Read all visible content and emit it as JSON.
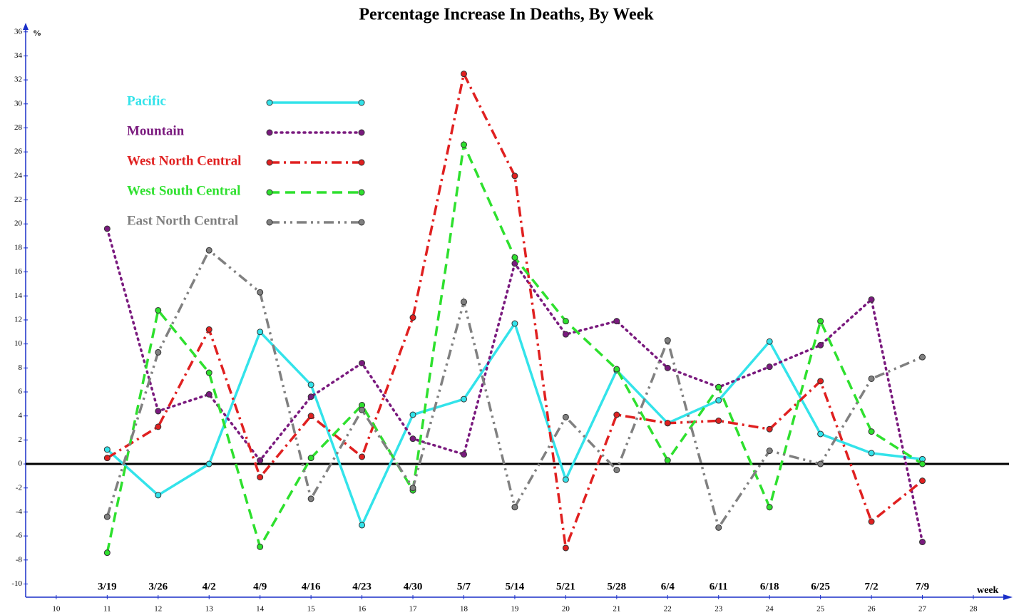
{
  "chart_data": {
    "type": "line",
    "title": "Percentage Increase In Deaths, By Week",
    "ylabel": "%",
    "xlabel": "week",
    "x": [
      11,
      12,
      13,
      14,
      15,
      16,
      17,
      18,
      19,
      20,
      21,
      22,
      23,
      24,
      25,
      26,
      27
    ],
    "date_labels": [
      "3/19",
      "3/26",
      "4/2",
      "4/9",
      "4/16",
      "4/23",
      "4/30",
      "5/7",
      "5/14",
      "5/21",
      "5/28",
      "6/4",
      "6/11",
      "6/18",
      "6/25",
      "7/2",
      "7/9"
    ],
    "xlim": [
      9.4,
      28.7
    ],
    "xticks": [
      10,
      11,
      12,
      13,
      14,
      15,
      16,
      17,
      18,
      19,
      20,
      21,
      22,
      23,
      24,
      25,
      26,
      27,
      28
    ],
    "ylim": [
      -11.1,
      36.4
    ],
    "yticks": [
      -10,
      -8,
      -6,
      -4,
      -2,
      0,
      2,
      4,
      6,
      8,
      10,
      12,
      14,
      16,
      18,
      20,
      22,
      24,
      26,
      28,
      30,
      32,
      34,
      36
    ],
    "legend": "upper left",
    "series": [
      {
        "name": "Pacific",
        "color": "#33e3ea",
        "linestyle": "solid",
        "values": [
          1.2,
          -2.6,
          0,
          11,
          6.6,
          -5.1,
          4.1,
          5.4,
          11.7,
          -1.3,
          7.8,
          3.4,
          5.3,
          10.2,
          2.5,
          0.9,
          0.4
        ]
      },
      {
        "name": "Mountain",
        "color": "#7a1a7e",
        "linestyle": "dotted",
        "values": [
          19.6,
          4.4,
          5.8,
          0.3,
          5.6,
          8.4,
          2.1,
          0.8,
          16.7,
          10.8,
          11.9,
          8.0,
          6.4,
          8.1,
          9.9,
          13.7,
          -6.5
        ]
      },
      {
        "name": "West North Central",
        "color": "#e02020",
        "linestyle": "dashdot",
        "values": [
          0.5,
          3.1,
          11.2,
          -1.1,
          4.0,
          0.6,
          12.2,
          32.5,
          24.0,
          -7.0,
          4.1,
          3.4,
          3.6,
          2.9,
          6.9,
          -4.8,
          -1.4
        ]
      },
      {
        "name": "West South Central",
        "color": "#2ee02e",
        "linestyle": "dashed",
        "values": [
          -7.4,
          12.8,
          7.6,
          -6.9,
          0.5,
          4.9,
          -2.2,
          26.6,
          17.2,
          11.9,
          7.9,
          0.3,
          6.4,
          -3.6,
          11.9,
          2.7,
          0.0
        ]
      },
      {
        "name": "East North Central",
        "color": "#808080",
        "linestyle": "dashdotdot",
        "values": [
          -4.4,
          9.3,
          17.8,
          14.3,
          -2.9,
          4.5,
          -2.0,
          13.5,
          -3.6,
          3.9,
          -0.5,
          10.3,
          -5.3,
          1.1,
          0.0,
          7.1,
          8.9
        ]
      }
    ]
  }
}
